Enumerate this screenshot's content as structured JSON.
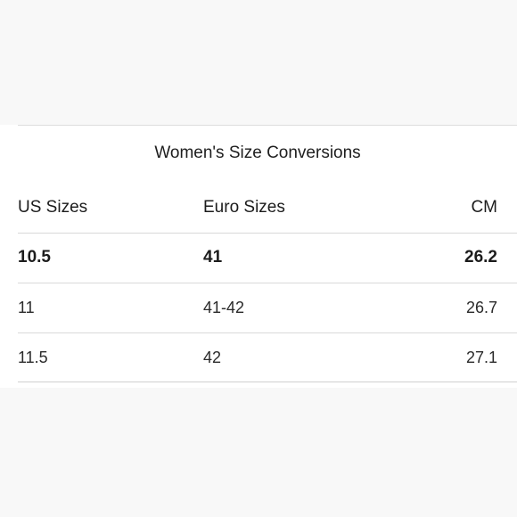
{
  "table": {
    "caption": "Women's Size Conversions",
    "columns": [
      "US Sizes",
      "Euro Sizes",
      "CM"
    ],
    "rows": [
      [
        "10.5",
        "41",
        "26.2"
      ],
      [
        "11",
        "41-42",
        "26.7"
      ],
      [
        "11.5",
        "42",
        "27.1"
      ]
    ]
  }
}
